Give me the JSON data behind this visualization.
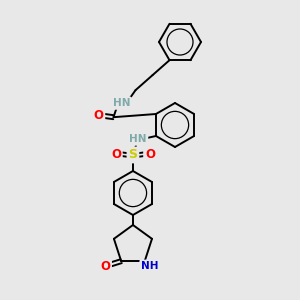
{
  "background_color": "#e8e8e8",
  "bond_color": "#000000",
  "atom_colors": {
    "N": "#0000cc",
    "O": "#ff0000",
    "S": "#cccc00",
    "HN": "#7faaaa",
    "C": "#000000"
  },
  "figsize": [
    3.0,
    3.0
  ],
  "dpi": 100,
  "lw": 1.4
}
